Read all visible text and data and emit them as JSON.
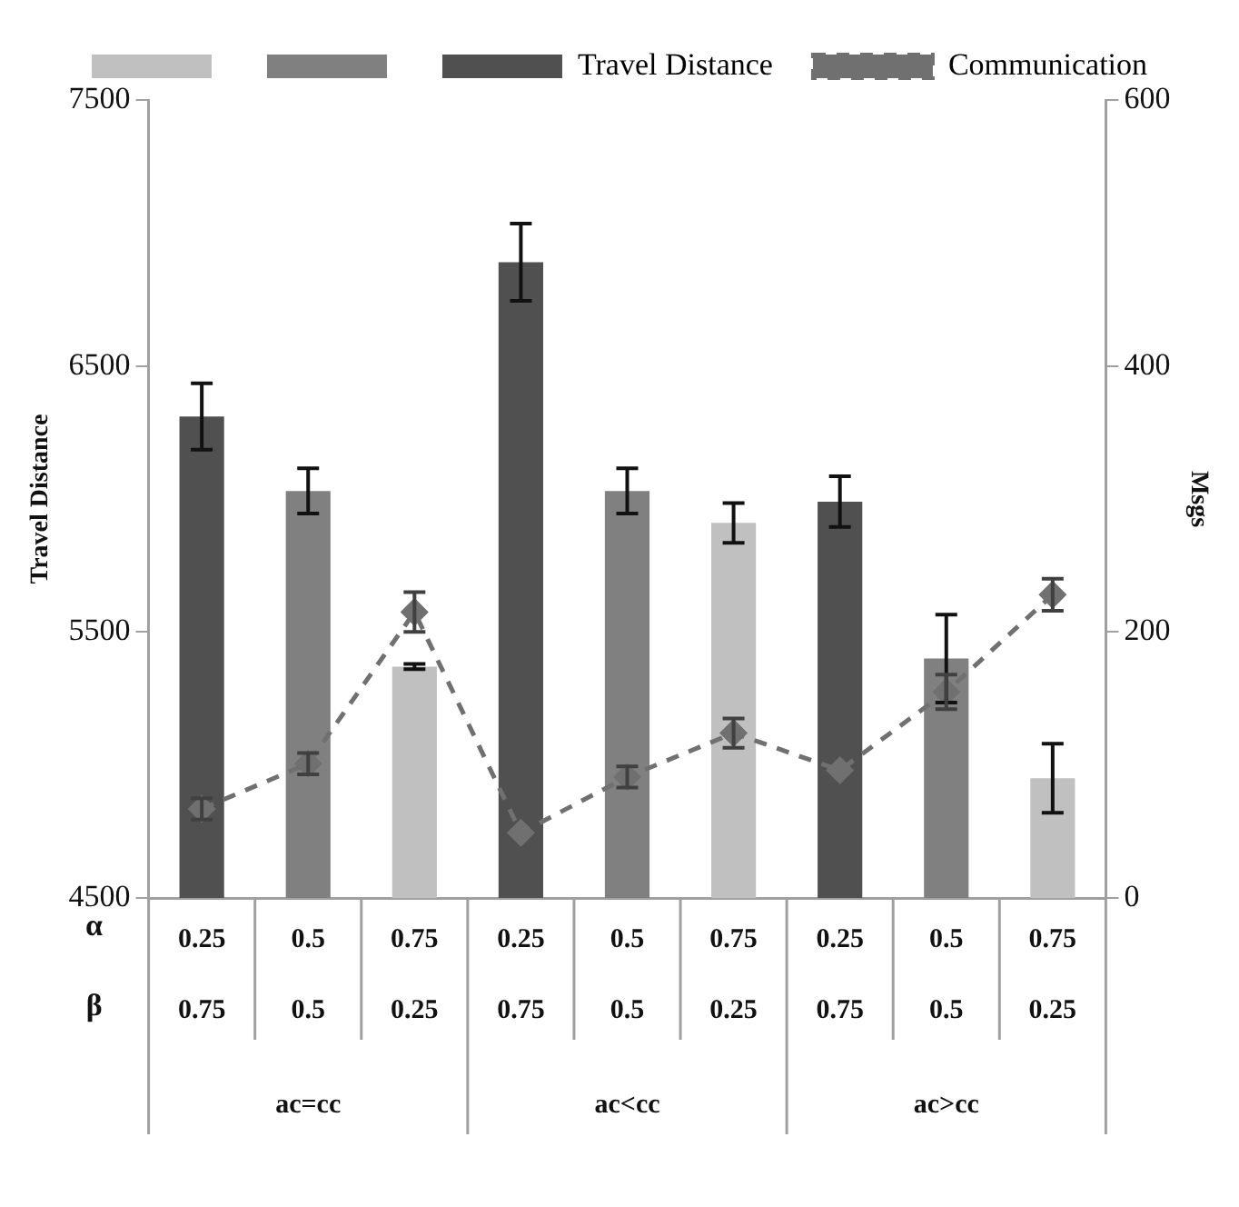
{
  "chart_data": {
    "type": "bar",
    "xlabel": null,
    "ylabel": "Travel Distance",
    "y2label": "Msgs",
    "categories": [
      "0.25",
      "0.5",
      "0.75",
      "0.25",
      "0.5",
      "0.75",
      "0.25",
      "0.5",
      "0.75"
    ],
    "series": [
      {
        "color": "#c0c0c0",
        "values": [
          null,
          null,
          5370,
          null,
          null,
          5910,
          null,
          null,
          4950
        ],
        "errors": [
          null,
          null,
          10,
          null,
          null,
          75,
          null,
          null,
          130
        ]
      },
      {
        "color": "#808080",
        "values": [
          null,
          6030,
          null,
          null,
          6030,
          null,
          null,
          5400,
          null
        ],
        "errors": [
          null,
          85,
          null,
          null,
          85,
          null,
          null,
          165,
          null
        ]
      },
      {
        "name": "Travel Distance",
        "color": "#505050",
        "values": [
          6310,
          null,
          null,
          6890,
          null,
          null,
          5990,
          null,
          null
        ],
        "errors": [
          125,
          null,
          null,
          145,
          null,
          null,
          95,
          null,
          null
        ]
      },
      {
        "name": "Communication",
        "type": "line",
        "axis": "y2",
        "color": "#707070",
        "line_style": "dashed",
        "marker": "diamond",
        "values": [
          67,
          101,
          215,
          49,
          91,
          124,
          96,
          155,
          228
        ],
        "errors": [
          8,
          8,
          15,
          null,
          8,
          11,
          null,
          13,
          12
        ]
      }
    ],
    "ylim": [
      4500,
      7500
    ],
    "yticks": [
      4500,
      5500,
      6500,
      7500
    ],
    "y2lim": [
      0,
      600
    ],
    "y2ticks": [
      0,
      200,
      400,
      600
    ],
    "grid": false,
    "legend": "top",
    "annotations": [
      "α",
      "β",
      "0.75",
      "0.5",
      "0.25",
      "0.75",
      "0.5",
      "0.25",
      "0.75",
      "0.5",
      "0.25",
      "ac=cc",
      "ac<cc",
      "ac>cc"
    ]
  }
}
